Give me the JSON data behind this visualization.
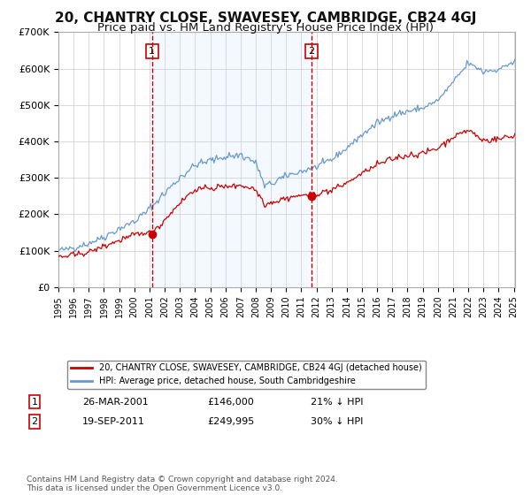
{
  "title": "20, CHANTRY CLOSE, SWAVESEY, CAMBRIDGE, CB24 4GJ",
  "subtitle": "Price paid vs. HM Land Registry's House Price Index (HPI)",
  "red_label": "20, CHANTRY CLOSE, SWAVESEY, CAMBRIDGE, CB24 4GJ (detached house)",
  "blue_label": "HPI: Average price, detached house, South Cambridgeshire",
  "marker1_date": "26-MAR-2001",
  "marker1_price": 146000,
  "marker1_text": "21% ↓ HPI",
  "marker2_date": "19-SEP-2011",
  "marker2_price": 249995,
  "marker2_text": "30% ↓ HPI",
  "footnote": "Contains HM Land Registry data © Crown copyright and database right 2024.\nThis data is licensed under the Open Government Licence v3.0.",
  "ylim": [
    0,
    700000
  ],
  "red_color": "#cc0000",
  "blue_color": "#6699cc",
  "shade_color": "#ddeeff",
  "background_color": "#ffffff",
  "grid_color": "#cccccc",
  "title_fontsize": 11,
  "subtitle_fontsize": 9.5
}
